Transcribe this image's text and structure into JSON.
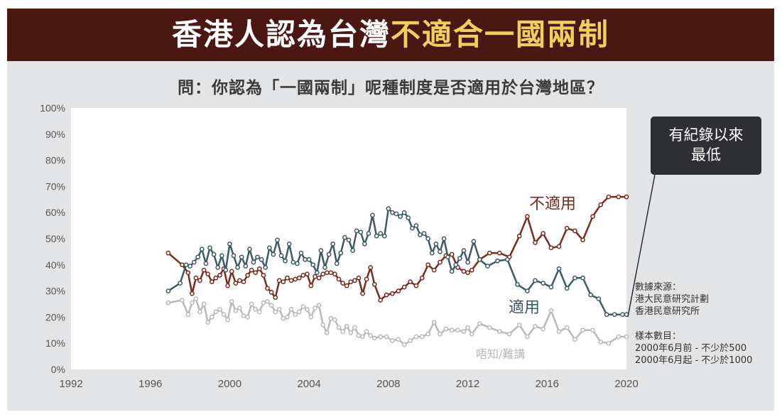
{
  "header": {
    "title_main": "香港人認為台灣",
    "title_highlight": "不適合一國兩制",
    "question": "問：你認為「一國兩制」呢種制度是否適用於台灣地區？"
  },
  "callout": {
    "line1": "有紀錄以來",
    "line2": "最低"
  },
  "notes": {
    "source_label": "數據來源：",
    "source_1": "港大民意研究計劃",
    "source_2": "香港民意研究所",
    "sample_label": "樣本數目：",
    "sample_1": "2000年6月前 - 不少於500",
    "sample_2": "2000年6月起 - 不少於1000"
  },
  "colors": {
    "not_applicable": "#7a2a1e",
    "applicable": "#3d5b62",
    "dont_know": "#b9b9b9",
    "title_gold": "#f1cf5c",
    "banner": "#4b1712"
  },
  "chart_data": {
    "type": "line",
    "title": "問：你認為「一國兩制」呢種制度是否適用於台灣地區？",
    "xlabel": "",
    "ylabel": "",
    "xlim": [
      1992,
      2020
    ],
    "ylim": [
      0,
      100
    ],
    "x_ticks": [
      "1992",
      "1996",
      "2000",
      "2004",
      "2008",
      "2012",
      "2016",
      "2020"
    ],
    "y_ticks": [
      "0%",
      "10%",
      "20%",
      "30%",
      "40%",
      "50%",
      "60%",
      "70%",
      "80%",
      "90%",
      "100%"
    ],
    "series": [
      {
        "name": "不適用",
        "label": "不適用",
        "color": "#7a2a1e",
        "x": [
          1996.9,
          1997.6,
          1997.9,
          1998.1,
          1998.3,
          1998.5,
          1998.7,
          1998.9,
          1999.1,
          1999.3,
          1999.5,
          1999.7,
          1999.9,
          2000.1,
          2000.3,
          2000.5,
          2000.7,
          2000.9,
          2001.1,
          2001.3,
          2001.5,
          2001.7,
          2001.9,
          2002.1,
          2002.3,
          2002.5,
          2002.7,
          2002.9,
          2003.1,
          2003.3,
          2003.5,
          2003.7,
          2003.9,
          2004.1,
          2004.3,
          2004.5,
          2004.7,
          2004.9,
          2005.1,
          2005.3,
          2005.5,
          2005.7,
          2005.9,
          2006.1,
          2006.3,
          2006.5,
          2006.7,
          2006.9,
          2007.1,
          2007.3,
          2007.6,
          2007.9,
          2008.2,
          2008.5,
          2008.8,
          2009.1,
          2009.4,
          2009.7,
          2010.0,
          2010.3,
          2010.6,
          2010.9,
          2011.2,
          2011.5,
          2011.8,
          2012.0,
          2012.2,
          2012.6,
          2013.1,
          2013.6,
          2014.1,
          2014.6,
          2015.0,
          2015.4,
          2015.8,
          2016.2,
          2016.6,
          2017.0,
          2017.4,
          2017.8,
          2018.3,
          2018.7,
          2019.1,
          2019.6,
          2020.0
        ],
        "y": [
          44.5,
          40.0,
          37.0,
          29.0,
          35.0,
          34.0,
          38.0,
          36.5,
          33.5,
          35.0,
          36.0,
          38.5,
          32.0,
          37.5,
          33.0,
          34.0,
          33.5,
          36.0,
          38.0,
          37.0,
          38.5,
          36.0,
          31.0,
          29.5,
          27.5,
          34.0,
          33.5,
          35.0,
          34.0,
          34.5,
          35.0,
          36.0,
          36.5,
          32.0,
          35.5,
          35.0,
          36.5,
          37.0,
          37.0,
          36.5,
          34.5,
          33.0,
          32.0,
          33.5,
          34.0,
          35.0,
          29.0,
          34.5,
          39.0,
          32.5,
          26.5,
          28.5,
          29.0,
          30.0,
          31.5,
          33.5,
          32.0,
          35.0,
          40.0,
          38.0,
          41.0,
          43.5,
          44.0,
          39.0,
          37.5,
          37.0,
          38.0,
          42.0,
          44.5,
          44.5,
          43.0,
          51.0,
          58.5,
          48.5,
          52.0,
          46.5,
          47.0,
          54.0,
          53.0,
          49.5,
          58.5,
          63.0,
          66.0,
          66.0,
          66.0
        ]
      },
      {
        "name": "適用",
        "label": "適用",
        "color": "#3d5b62",
        "x": [
          1996.9,
          1997.5,
          1997.8,
          1998.0,
          1998.2,
          1998.4,
          1998.6,
          1998.8,
          1999.0,
          1999.2,
          1999.4,
          1999.6,
          1999.8,
          2000.0,
          2000.2,
          2000.4,
          2000.6,
          2000.8,
          2001.0,
          2001.2,
          2001.4,
          2001.6,
          2001.8,
          2002.0,
          2002.2,
          2002.4,
          2002.6,
          2002.8,
          2003.0,
          2003.2,
          2003.4,
          2003.6,
          2003.8,
          2004.0,
          2004.2,
          2004.4,
          2004.6,
          2004.8,
          2005.0,
          2005.2,
          2005.4,
          2005.6,
          2005.8,
          2006.0,
          2006.2,
          2006.4,
          2006.6,
          2006.8,
          2007.0,
          2007.2,
          2007.4,
          2007.6,
          2007.8,
          2008.0,
          2008.2,
          2008.4,
          2008.6,
          2008.8,
          2009.0,
          2009.2,
          2009.4,
          2009.6,
          2009.8,
          2010.0,
          2010.2,
          2010.4,
          2010.6,
          2010.8,
          2011.0,
          2011.2,
          2011.4,
          2011.6,
          2011.8,
          2012.0,
          2012.3,
          2012.6,
          2013.0,
          2013.5,
          2014.0,
          2014.5,
          2015.0,
          2015.4,
          2015.8,
          2016.2,
          2016.6,
          2017.0,
          2017.4,
          2017.8,
          2018.2,
          2018.6,
          2019.0,
          2019.4,
          2019.8,
          2020.0
        ],
        "y": [
          30.0,
          33.0,
          40.0,
          39.5,
          41.0,
          43.0,
          46.0,
          40.5,
          46.5,
          44.0,
          39.0,
          43.5,
          38.0,
          48.0,
          43.5,
          39.0,
          43.0,
          39.5,
          46.0,
          41.0,
          43.0,
          42.0,
          39.0,
          46.5,
          44.0,
          49.5,
          43.5,
          41.5,
          48.0,
          41.0,
          40.5,
          44.5,
          42.0,
          42.0,
          40.0,
          37.0,
          45.5,
          39.0,
          44.0,
          48.0,
          40.5,
          44.5,
          50.5,
          49.5,
          45.5,
          53.0,
          52.5,
          48.0,
          52.0,
          59.0,
          51.0,
          52.0,
          51.0,
          61.5,
          60.0,
          59.5,
          58.5,
          60.0,
          58.0,
          54.0,
          55.0,
          51.5,
          52.0,
          50.0,
          44.5,
          48.0,
          45.0,
          50.0,
          43.0,
          37.5,
          40.0,
          42.5,
          45.5,
          41.0,
          49.0,
          42.0,
          39.5,
          41.5,
          42.0,
          32.5,
          30.0,
          34.0,
          33.0,
          31.5,
          38.5,
          31.0,
          35.0,
          35.0,
          28.5,
          27.0,
          21.0,
          21.0,
          21.0,
          21.0
        ]
      },
      {
        "name": "唔知/難講",
        "label": "唔知/難講",
        "color": "#b9b9b9",
        "x": [
          1996.9,
          1997.6,
          1997.9,
          1998.1,
          1998.3,
          1998.5,
          1998.7,
          1998.9,
          1999.1,
          1999.3,
          1999.5,
          1999.7,
          1999.9,
          2000.1,
          2000.3,
          2000.5,
          2000.7,
          2000.9,
          2001.1,
          2001.3,
          2001.5,
          2001.7,
          2001.9,
          2002.1,
          2002.3,
          2002.5,
          2002.7,
          2002.9,
          2003.1,
          2003.3,
          2003.5,
          2003.7,
          2003.9,
          2004.1,
          2004.3,
          2004.5,
          2004.7,
          2004.9,
          2005.1,
          2005.3,
          2005.5,
          2005.7,
          2005.9,
          2006.1,
          2006.3,
          2006.5,
          2006.7,
          2006.9,
          2007.1,
          2007.3,
          2007.6,
          2007.9,
          2008.2,
          2008.5,
          2008.8,
          2009.1,
          2009.4,
          2009.7,
          2010.0,
          2010.3,
          2010.6,
          2010.9,
          2011.2,
          2011.5,
          2011.8,
          2012.0,
          2012.2,
          2012.6,
          2013.1,
          2013.6,
          2014.1,
          2014.6,
          2015.0,
          2015.4,
          2015.8,
          2016.2,
          2016.6,
          2017.0,
          2017.4,
          2017.8,
          2018.3,
          2018.7,
          2019.1,
          2019.6,
          2020.0
        ],
        "y": [
          25.5,
          26.5,
          21.0,
          25.5,
          27.0,
          22.0,
          25.0,
          18.0,
          20.0,
          22.0,
          23.0,
          21.0,
          19.0,
          26.0,
          22.5,
          23.5,
          20.5,
          20.0,
          25.0,
          23.0,
          22.0,
          25.5,
          26.0,
          24.5,
          22.0,
          23.0,
          19.5,
          20.0,
          23.0,
          21.0,
          22.0,
          24.0,
          23.0,
          20.0,
          23.5,
          24.5,
          17.0,
          14.0,
          19.5,
          19.0,
          16.0,
          14.5,
          16.5,
          14.0,
          16.0,
          13.0,
          12.5,
          14.5,
          13.0,
          12.0,
          12.5,
          12.5,
          11.0,
          11.5,
          9.5,
          11.0,
          12.5,
          12.5,
          13.5,
          18.0,
          13.5,
          15.5,
          15.0,
          15.0,
          14.5,
          16.0,
          13.5,
          17.5,
          16.0,
          14.5,
          13.5,
          17.0,
          12.5,
          16.5,
          15.5,
          22.5,
          14.5,
          16.0,
          11.5,
          15.0,
          15.0,
          10.5,
          10.0,
          12.5,
          12.5
        ]
      }
    ]
  }
}
